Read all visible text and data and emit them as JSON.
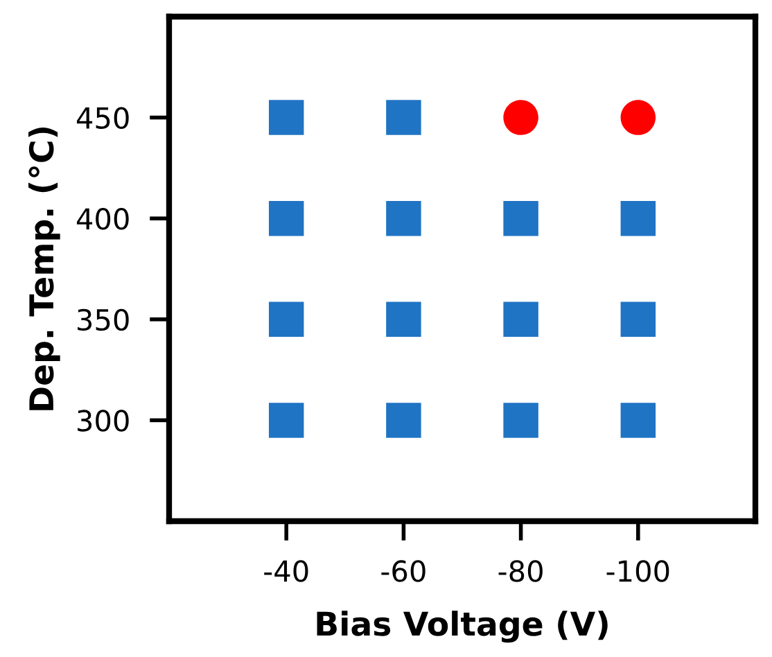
{
  "chart_data": {
    "type": "scatter",
    "xlabel": "Bias Voltage (V)",
    "ylabel": "Dep. Temp. (°C)",
    "xlim": [
      -20,
      -120
    ],
    "xticks": [
      -40,
      -60,
      -80,
      -100
    ],
    "ylim": [
      250,
      500
    ],
    "yticks": [
      300,
      350,
      400,
      450
    ],
    "grid": false,
    "series": [
      {
        "color": "#1f74c4",
        "marker": "square",
        "x": [
          -40,
          -60,
          -40,
          -60,
          -80,
          -100,
          -40,
          -60,
          -80,
          -100,
          -40,
          -60,
          -80,
          -100
        ],
        "values": [
          450,
          450,
          400,
          400,
          400,
          400,
          350,
          350,
          350,
          350,
          300,
          300,
          300,
          300
        ]
      },
      {
        "color": "#ff0000",
        "marker": "circle",
        "x": [
          -80,
          -100
        ],
        "values": [
          450,
          450
        ]
      }
    ]
  }
}
